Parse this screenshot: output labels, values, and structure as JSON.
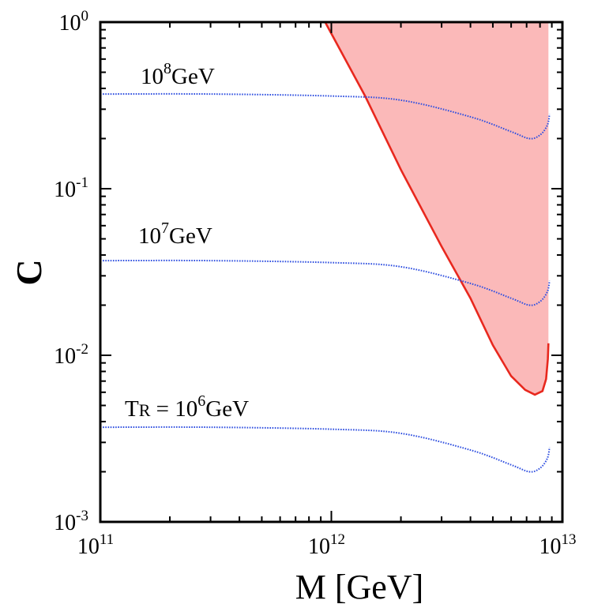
{
  "chart_data": {
    "type": "line",
    "title": "",
    "xlabel": "M [GeV]",
    "ylabel": "C",
    "xscale": "log",
    "yscale": "log",
    "xlim": [
      100000000000.0,
      10000000000000.0
    ],
    "ylim": [
      0.001,
      1
    ],
    "x_ticks": [
      {
        "base": "10",
        "exp": "11",
        "value": 100000000000.0
      },
      {
        "base": "10",
        "exp": "12",
        "value": 1000000000000.0
      },
      {
        "base": "10",
        "exp": "13",
        "value": 10000000000000.0
      }
    ],
    "y_ticks": [
      {
        "base": "10",
        "exp": "-3",
        "value": 0.001
      },
      {
        "base": "10",
        "exp": "-2",
        "value": 0.01
      },
      {
        "base": "10",
        "exp": "-1",
        "value": 0.1
      },
      {
        "base": "10",
        "exp": "0",
        "value": 1
      }
    ],
    "series": [
      {
        "label_prefix": "T",
        "label_sub": "R",
        "label_mid": " = 10",
        "label_exp": "6",
        "label_unit": "GeV",
        "style": "dotted",
        "color": "#3050e0",
        "points": [
          [
            100000000000.0,
            0.0037
          ],
          [
            300000000000.0,
            0.0037
          ],
          [
            1000000000000.0,
            0.0036
          ],
          [
            2000000000000.0,
            0.0034
          ],
          [
            4000000000000.0,
            0.0027
          ],
          [
            6000000000000.0,
            0.0022
          ],
          [
            7200000000000.0,
            0.002
          ],
          [
            8000000000000.0,
            0.0021
          ],
          [
            8600000000000.0,
            0.0024
          ],
          [
            8800000000000.0,
            0.0028
          ]
        ]
      },
      {
        "label_prefix": "",
        "label_sub": "",
        "label_mid": "10",
        "label_exp": "7",
        "label_unit": "GeV",
        "style": "dotted",
        "color": "#3050e0",
        "points": [
          [
            100000000000.0,
            0.037
          ],
          [
            300000000000.0,
            0.037
          ],
          [
            1000000000000.0,
            0.036
          ],
          [
            2000000000000.0,
            0.034
          ],
          [
            4000000000000.0,
            0.027
          ],
          [
            6000000000000.0,
            0.022
          ],
          [
            7200000000000.0,
            0.02
          ],
          [
            8000000000000.0,
            0.021
          ],
          [
            8600000000000.0,
            0.024
          ],
          [
            8800000000000.0,
            0.028
          ]
        ]
      },
      {
        "label_prefix": "",
        "label_sub": "",
        "label_mid": "10",
        "label_exp": "8",
        "label_unit": "GeV",
        "style": "dotted",
        "color": "#3050e0",
        "points": [
          [
            100000000000.0,
            0.37
          ],
          [
            300000000000.0,
            0.37
          ],
          [
            1000000000000.0,
            0.36
          ],
          [
            2000000000000.0,
            0.34
          ],
          [
            4000000000000.0,
            0.27
          ],
          [
            6000000000000.0,
            0.22
          ],
          [
            7200000000000.0,
            0.2
          ],
          [
            8000000000000.0,
            0.21
          ],
          [
            8600000000000.0,
            0.24
          ],
          [
            8800000000000.0,
            0.28
          ]
        ]
      }
    ],
    "region": {
      "fill": "#fbb9b9",
      "edge_color": "#e8281e",
      "boundary": [
        [
          940000000000.0,
          1.0
        ],
        [
          1400000000000.0,
          0.36
        ],
        [
          2000000000000.0,
          0.13
        ],
        [
          3000000000000.0,
          0.045
        ],
        [
          4000000000000.0,
          0.022
        ],
        [
          5000000000000.0,
          0.0115
        ],
        [
          6000000000000.0,
          0.0075
        ],
        [
          6900000000000.0,
          0.0062
        ],
        [
          7600000000000.0,
          0.0058
        ],
        [
          8200000000000.0,
          0.0061
        ],
        [
          8500000000000.0,
          0.0072
        ],
        [
          8650000000000.0,
          0.0095
        ],
        [
          8700000000000.0,
          0.0118
        ]
      ],
      "right_edge_x": 8700000000000.0,
      "top_y": 1.0
    }
  }
}
